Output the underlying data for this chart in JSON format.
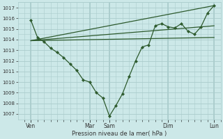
{
  "background_color": "#cce8e8",
  "grid_color": "#aacccc",
  "line_color": "#2d5a2d",
  "marker_color": "#2d5a2d",
  "xlabel": "Pression niveau de la mer( hPa )",
  "ylim": [
    1006.5,
    1017.5
  ],
  "yticks": [
    1007,
    1008,
    1009,
    1010,
    1011,
    1012,
    1013,
    1014,
    1015,
    1016,
    1017
  ],
  "xlim": [
    -0.5,
    14.5
  ],
  "xtick_major_positions": [
    0.5,
    5.0,
    6.5,
    11.0,
    14.5
  ],
  "xtick_major_labels": [
    "Ven",
    "Mar",
    "Sam",
    "Dim",
    "Lun"
  ],
  "n_minor_ticks": 30,
  "vlines_x": [
    0.5,
    5.0,
    6.5,
    11.0,
    14.5
  ],
  "forecast_lines": [
    {
      "x": [
        0.5,
        14.5
      ],
      "y": [
        1013.9,
        1014.2
      ]
    },
    {
      "x": [
        0.5,
        14.5
      ],
      "y": [
        1013.9,
        1015.3
      ]
    },
    {
      "x": [
        0.5,
        14.5
      ],
      "y": [
        1013.9,
        1017.2
      ]
    }
  ],
  "main_series_x": [
    0.5,
    1.0,
    1.5,
    2.0,
    2.5,
    3.0,
    3.5,
    4.0,
    4.5,
    5.0,
    5.5,
    6.0,
    6.5,
    7.0,
    7.5,
    8.0,
    8.5,
    9.0,
    9.5,
    10.0,
    10.5,
    11.0,
    11.5,
    12.0,
    12.5,
    13.0,
    13.5,
    14.0,
    14.5
  ],
  "main_series_y": [
    1015.8,
    1014.2,
    1013.8,
    1013.2,
    1012.8,
    1012.3,
    1011.7,
    1011.1,
    1010.2,
    1010.0,
    1009.0,
    1008.5,
    1006.8,
    1007.8,
    1008.9,
    1010.5,
    1012.0,
    1013.3,
    1013.5,
    1015.3,
    1015.5,
    1015.2,
    1015.1,
    1015.5,
    1014.8,
    1014.5,
    1015.2,
    1016.5,
    1017.2
  ]
}
